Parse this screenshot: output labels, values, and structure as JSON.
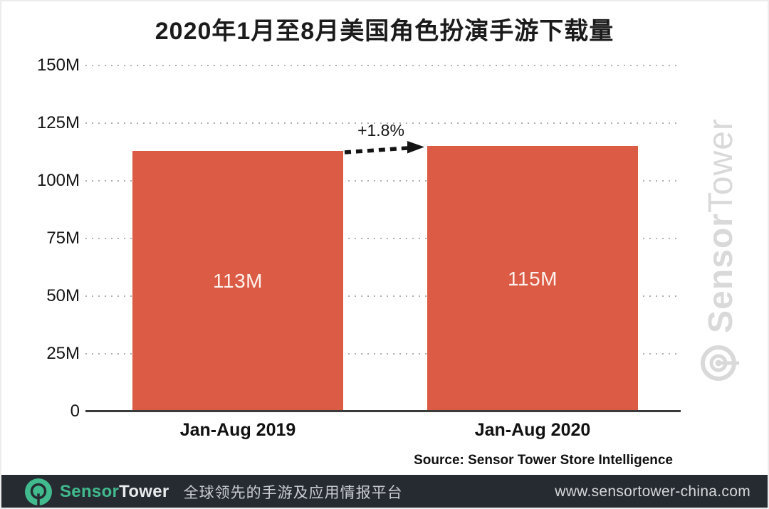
{
  "chart_data": {
    "type": "bar",
    "title": "2020年1月至8月美国角色扮演手游下载量",
    "categories": [
      "Jan-Aug 2019",
      "Jan-Aug 2020"
    ],
    "values": [
      113,
      115
    ],
    "unit": "M",
    "bar_labels": [
      "113M",
      "115M"
    ],
    "ylim": [
      0,
      150
    ],
    "yticks": [
      150,
      125,
      100,
      75,
      50,
      25,
      0
    ],
    "ytick_labels": [
      "150M",
      "125M",
      "100M",
      "75M",
      "50M",
      "25M",
      "0"
    ],
    "grid": "horizontal-dotted",
    "legend": "none",
    "bar_color": "#DB5B45",
    "annotation": {
      "text": "+1.8%",
      "style": "dashed-arrow-between-bars"
    },
    "source": "Source: Sensor Tower Store Intelligence"
  },
  "watermark": {
    "brand_bold": "Sensor",
    "brand_regular": "Tower",
    "logo": "sensortower-ring-logo",
    "color": "#D9D9D9"
  },
  "footer": {
    "logo": "sensortower-ring-logo",
    "brand_bold": "Sensor",
    "brand_regular": "Tower",
    "tagline": "全球领先的手游及应用情报平台",
    "url": "www.sensortower-china.com",
    "bg_color": "#262B32",
    "accent_color": "#41BA8D"
  }
}
